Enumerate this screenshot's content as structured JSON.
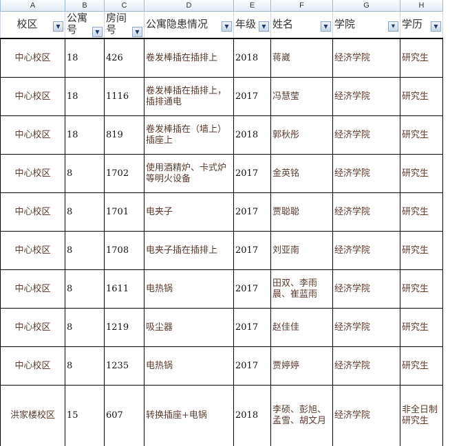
{
  "columns": [
    "A",
    "B",
    "C",
    "D",
    "E",
    "F",
    "G",
    "H"
  ],
  "headers": [
    "校区",
    "公寓号",
    "房间号",
    "公寓隐患情况",
    "年级",
    "姓名",
    "学院",
    "学历"
  ],
  "filter_icons": [
    "dropdown",
    "dropdown",
    "dropdown",
    "dropdown",
    "dropdown",
    "dropdown",
    "filter-active",
    "dropdown"
  ],
  "rows": [
    [
      "中心校区",
      "18",
      "426",
      "卷发棒插在插排上",
      "2018",
      "蒋崴",
      "经济学院",
      "研究生"
    ],
    [
      "中心校区",
      "18",
      "1116",
      "卷发棒插在插排上，插排通电",
      "2017",
      "冯慧莹",
      "经济学院",
      "研究生"
    ],
    [
      "中心校区",
      "18",
      "819",
      "卷发棒插在（墙上）插座上",
      "2018",
      "郭秋彤",
      "经济学院",
      "研究生"
    ],
    [
      "中心校区",
      "8",
      "1702",
      "使用酒精炉、卡式炉等明火设备",
      "2017",
      "金英铭",
      "经济学院",
      "研究生"
    ],
    [
      "中心校区",
      "8",
      "1701",
      "电夹子",
      "2017",
      "贾聪聪",
      "经济学院",
      "研究生"
    ],
    [
      "中心校区",
      "8",
      "1708",
      "电夹子插在插排上",
      "2017",
      "刘亚南",
      "经济学院",
      "研究生"
    ],
    [
      "中心校区",
      "8",
      "1611",
      "电热锅",
      "2017",
      "田双、李雨晨、崔蓝雨",
      "经济学院",
      "研究生"
    ],
    [
      "中心校区",
      "8",
      "1219",
      "吸尘器",
      "2017",
      "赵佳佳",
      "经济学院",
      "研究生"
    ],
    [
      "中心校区",
      "8",
      "1235",
      "电热锅",
      "2017",
      "贾婷婷",
      "经济学院",
      "研究生"
    ],
    [
      "洪家楼校区",
      "15",
      "607",
      "转换插座+电锅",
      "2018",
      "李硕、彭旭、孟雪、胡文月",
      "经济学院",
      "非全日制研究生"
    ]
  ]
}
